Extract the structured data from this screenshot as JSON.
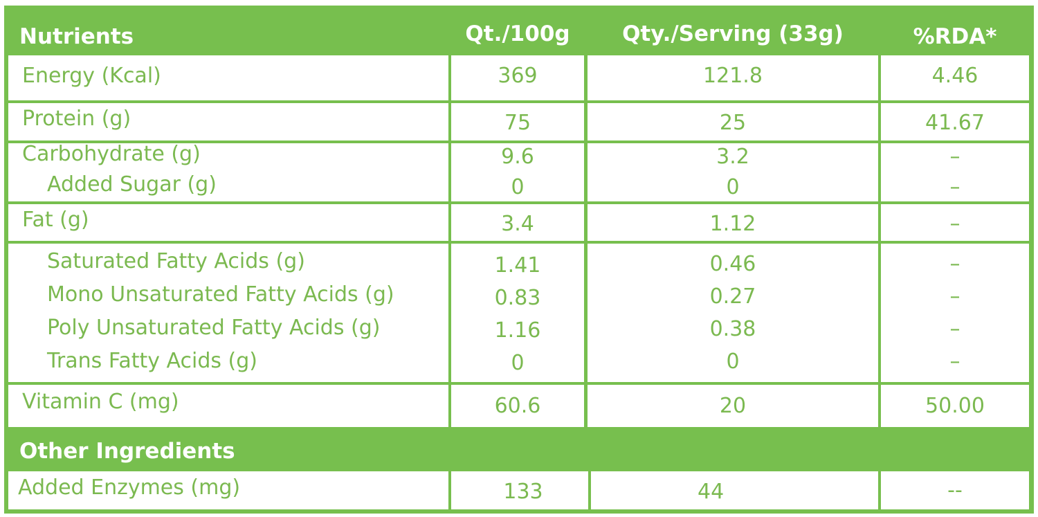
{
  "table": {
    "headers": {
      "nutrients": "Nutrients",
      "per100g": "Qt./100g",
      "perServing": "Qty./Serving (33g)",
      "rda": "%RDA*"
    },
    "rows": [
      {
        "name": "Energy (Kcal)",
        "per100g": "369",
        "perServing": "121.8",
        "rda": "4.46"
      },
      {
        "name": "Protein (g)",
        "per100g": "75",
        "perServing": "25",
        "rda": "41.67"
      },
      {
        "lines": [
          {
            "name": "Carbohydrate (g)",
            "per100g": "9.6",
            "perServing": "3.2",
            "rda": "–"
          },
          {
            "name": "Added Sugar (g)",
            "per100g": "0",
            "perServing": "0",
            "rda": "–"
          }
        ]
      },
      {
        "name": "Fat (g)",
        "per100g": "3.4",
        "perServing": "1.12",
        "rda": "–"
      },
      {
        "lines": [
          {
            "name": "Saturated Fatty Acids (g)",
            "per100g": "1.41",
            "perServing": "0.46",
            "rda": "–"
          },
          {
            "name": "Mono Unsaturated Fatty Acids (g)",
            "per100g": "0.83",
            "perServing": "0.27",
            "rda": "–"
          },
          {
            "name": "Poly Unsaturated Fatty Acids (g)",
            "per100g": "1.16",
            "perServing": "0.38",
            "rda": "–"
          },
          {
            "name": "Trans Fatty Acids (g)",
            "per100g": "0",
            "perServing": "0",
            "rda": "–"
          }
        ]
      },
      {
        "name": "Vitamin C (mg)",
        "per100g": "60.6",
        "perServing": "20",
        "rda": "50.00"
      }
    ],
    "other_header": "Other Ingredients",
    "other_rows": [
      {
        "name": "Added Enzymes (mg)",
        "per100g": "133",
        "perServing": "44",
        "rda": "--"
      }
    ]
  },
  "colors": {
    "green": "#77bf4e",
    "text": "#7bb950"
  }
}
